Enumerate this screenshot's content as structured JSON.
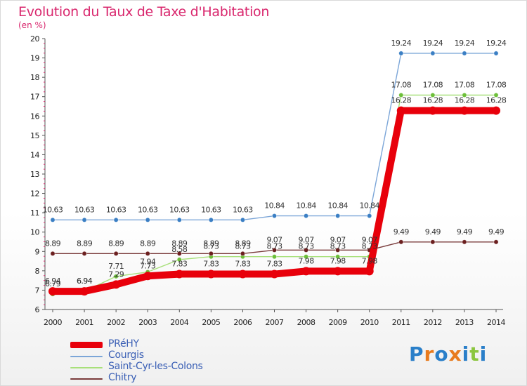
{
  "title": "Evolution du Taux de Taxe d'Habitation",
  "subtitle": "(en %)",
  "logo": {
    "text": "Proxiti",
    "letters": [
      {
        "ch": "P",
        "color": "#2a7fc9"
      },
      {
        "ch": "r",
        "color": "#e87b1e"
      },
      {
        "ch": "o",
        "color": "#2a7fc9"
      },
      {
        "ch": "x",
        "color": "#e87b1e"
      },
      {
        "ch": "i",
        "color": "#2a7fc9"
      },
      {
        "ch": "t",
        "color": "#8cc63f"
      },
      {
        "ch": "i",
        "color": "#2a7fc9"
      }
    ]
  },
  "chart_data": {
    "type": "line",
    "title": "Evolution du Taux de Taxe d'Habitation",
    "ylabel": "(en %)",
    "xlabel": "",
    "x": [
      "2000",
      "2001",
      "2002",
      "2003",
      "2004",
      "2005",
      "2006",
      "2007",
      "2008",
      "2009",
      "2010",
      "2011",
      "2012",
      "2013",
      "2014"
    ],
    "ylim": [
      6,
      20
    ],
    "yticks": [
      "6",
      "7",
      "8",
      "9",
      "10",
      "11",
      "12",
      "13",
      "14",
      "15",
      "16",
      "17",
      "18",
      "19",
      "20"
    ],
    "grid": false,
    "legend_position": "bottom-left",
    "series": [
      {
        "name": "PRéHY",
        "color": "#e8000b",
        "marker": "#e8000b",
        "emphasis": true,
        "values": [
          6.94,
          6.94,
          7.29,
          7.73,
          7.83,
          7.83,
          7.83,
          7.83,
          7.98,
          7.98,
          7.98,
          16.28,
          16.28,
          16.28,
          16.28
        ],
        "labels": [
          "6.94",
          "6.94",
          "7.29",
          "7.73",
          "7.83",
          "7.83",
          "7.83",
          "7.83",
          "7.98",
          "7.98",
          "7.98",
          "16.28",
          "16.28",
          "16.28",
          "16.28"
        ]
      },
      {
        "name": "Courgis",
        "color": "#7ca6d8",
        "marker": "#3b7fc4",
        "emphasis": false,
        "values": [
          10.63,
          10.63,
          10.63,
          10.63,
          10.63,
          10.63,
          10.63,
          10.84,
          10.84,
          10.84,
          10.84,
          19.24,
          19.24,
          19.24,
          19.24
        ],
        "labels": [
          "10.63",
          "10.63",
          "10.63",
          "10.63",
          "10.63",
          "10.63",
          "10.63",
          "10.84",
          "10.84",
          "10.84",
          "10.84",
          "19.24",
          "19.24",
          "19.24",
          "19.24"
        ]
      },
      {
        "name": "Saint-Cyr-les-Colons",
        "color": "#a8e07a",
        "marker": "#6dbf3a",
        "emphasis": false,
        "values": [
          6.79,
          6.94,
          7.71,
          7.94,
          8.58,
          8.73,
          8.73,
          8.73,
          8.73,
          8.73,
          8.73,
          17.08,
          17.08,
          17.08,
          17.08
        ],
        "labels": [
          "6.79",
          "6.94",
          "7.71",
          "7.94",
          "8.58",
          "8.73",
          "8.73",
          "8.73",
          "8.73",
          "8.73",
          "8.73",
          "17.08",
          "17.08",
          "17.08",
          "17.08"
        ]
      },
      {
        "name": "Chitry",
        "color": "#7a3b3b",
        "marker": "#6b1f1f",
        "emphasis": false,
        "values": [
          8.89,
          8.89,
          8.89,
          8.89,
          8.89,
          8.89,
          8.89,
          9.07,
          9.07,
          9.07,
          9.07,
          9.49,
          9.49,
          9.49,
          9.49
        ],
        "labels": [
          "8.89",
          "8.89",
          "8.89",
          "8.89",
          "8.89",
          "8.89",
          "8.89",
          "9.07",
          "9.07",
          "9.07",
          "9.07",
          "9.49",
          "9.49",
          "9.49",
          "9.49"
        ]
      }
    ]
  }
}
